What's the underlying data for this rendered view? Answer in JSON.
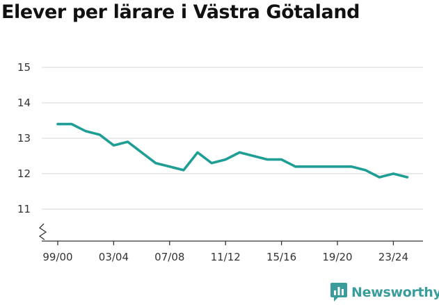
{
  "title": "Elever per lärare i Västra Götaland",
  "brand": {
    "name": "Newsworthy",
    "icon": "newsworthy-logo-icon"
  },
  "colors": {
    "line": "#1f9e96",
    "grid": "#dddddd",
    "axis": "#333333",
    "brand": "#3a9d9b"
  },
  "chart_data": {
    "type": "line",
    "title": "Elever per lärare i Västra Götaland",
    "xlabel": "",
    "ylabel": "",
    "ylim": [
      10.1,
      15.1
    ],
    "yticks": [
      11,
      12,
      13,
      14,
      15
    ],
    "axis_break": true,
    "grid": true,
    "x": [
      "99/00",
      "00/01",
      "01/02",
      "02/03",
      "03/04",
      "04/05",
      "05/06",
      "06/07",
      "07/08",
      "08/09",
      "09/10",
      "10/11",
      "11/12",
      "12/13",
      "13/14",
      "14/15",
      "15/16",
      "16/17",
      "17/18",
      "18/19",
      "19/20",
      "20/21",
      "21/22",
      "22/23",
      "23/24",
      "24/25"
    ],
    "x_tick_labels": [
      "99/00",
      "03/04",
      "07/08",
      "11/12",
      "15/16",
      "19/20",
      "23/24"
    ],
    "series": [
      {
        "values": [
          13.4,
          13.4,
          13.2,
          13.1,
          12.8,
          12.9,
          12.6,
          12.3,
          12.2,
          12.1,
          12.6,
          12.3,
          12.4,
          12.6,
          12.5,
          12.4,
          12.4,
          12.2,
          12.2,
          12.2,
          12.2,
          12.2,
          12.1,
          11.9,
          12.0,
          11.9
        ]
      }
    ]
  }
}
